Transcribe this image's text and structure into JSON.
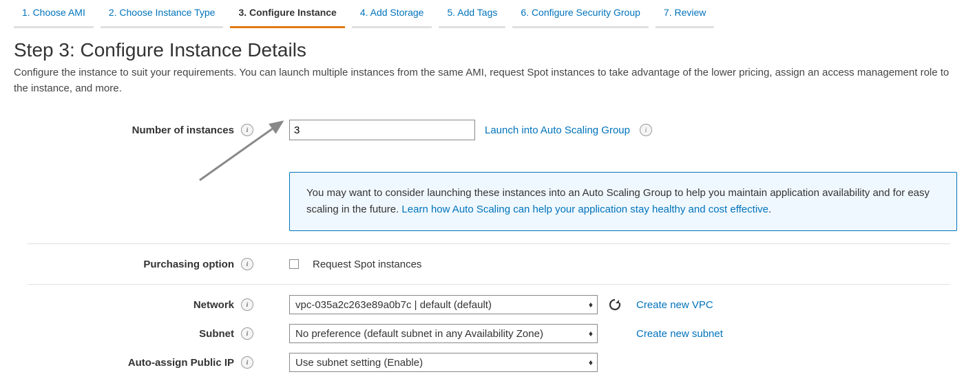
{
  "tabs": [
    {
      "label": "1. Choose AMI",
      "active": false
    },
    {
      "label": "2. Choose Instance Type",
      "active": false
    },
    {
      "label": "3. Configure Instance",
      "active": true
    },
    {
      "label": "4. Add Storage",
      "active": false
    },
    {
      "label": "5. Add Tags",
      "active": false
    },
    {
      "label": "6. Configure Security Group",
      "active": false
    },
    {
      "label": "7. Review",
      "active": false
    }
  ],
  "heading": "Step 3: Configure Instance Details",
  "description": "Configure the instance to suit your requirements. You can launch multiple instances from the same AMI, request Spot instances to take advantage of the lower pricing, assign an access management role to the instance, and more.",
  "labels": {
    "instances": "Number of instances",
    "purchasing": "Purchasing option",
    "network": "Network",
    "subnet": "Subnet",
    "public_ip": "Auto-assign Public IP"
  },
  "values": {
    "instances": "3",
    "network": "vpc-035a2c263e89a0b7c | default (default)",
    "subnet": "No preference (default subnet in any Availability Zone)",
    "public_ip": "Use subnet setting (Enable)"
  },
  "links": {
    "launch_asg": "Launch into Auto Scaling Group",
    "asg_learn": "Learn how Auto Scaling can help your application stay healthy and cost effective",
    "create_vpc": "Create new VPC",
    "create_subnet": "Create new subnet"
  },
  "checkbox": {
    "spot_label": "Request Spot instances"
  },
  "infobox": {
    "pre": "You may want to consider launching these instances into an Auto Scaling Group to help you maintain application availability and for easy scaling in the future. ",
    "suffix": "."
  },
  "colors": {
    "link": "#0073bb",
    "active_tab_underline": "#e47911",
    "inactive_tab_underline": "#e0e0e0",
    "infobox_bg": "#f0f8ff"
  }
}
